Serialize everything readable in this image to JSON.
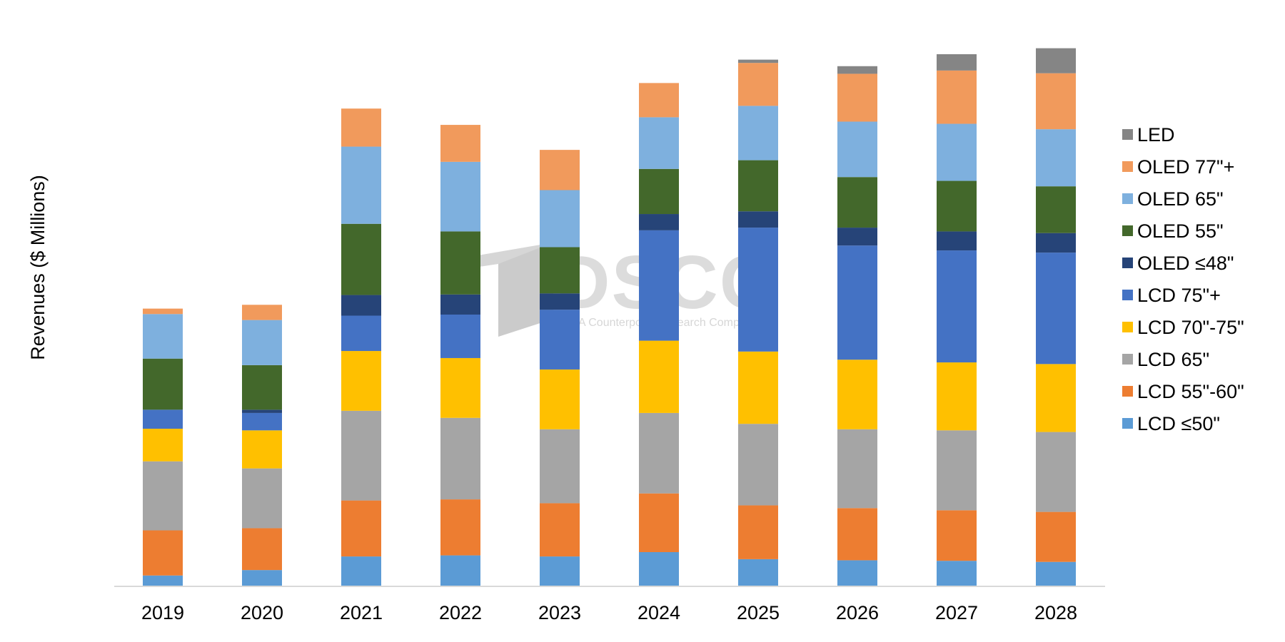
{
  "watermark": {
    "brand": "DSCC",
    "tagline": "A Counterpoint Research Company"
  },
  "chart_data": {
    "type": "bar",
    "stacked": true,
    "ylabel": "Revenues ($ Millions)",
    "xlabel": "",
    "title": "",
    "categories": [
      "2019",
      "2020",
      "2021",
      "2022",
      "2023",
      "2024",
      "2025",
      "2026",
      "2027",
      "2028"
    ],
    "ylim": [
      0,
      100
    ],
    "grid": false,
    "legend_position": "right",
    "series": [
      {
        "name": "LCD  ≤50\"",
        "color": "#5B9BD5",
        "values": [
          2,
          3,
          5.5,
          5.7,
          5.5,
          6.3,
          5,
          4.8,
          4.7,
          4.5
        ]
      },
      {
        "name": "LCD 55\"-60\"",
        "color": "#ED7D31",
        "values": [
          8.3,
          7.7,
          10.3,
          10.3,
          9.8,
          10.8,
          9.9,
          9.6,
          9.3,
          9.2
        ]
      },
      {
        "name": "LCD 65\"",
        "color": "#A5A5A5",
        "values": [
          12.7,
          11,
          16.5,
          15,
          13.6,
          14.8,
          15,
          14.5,
          14.7,
          14.7
        ]
      },
      {
        "name": "LCD 70\"-75\"",
        "color": "#FFC000",
        "values": [
          6,
          7,
          11,
          11,
          11,
          13.3,
          13.3,
          12.8,
          12.5,
          12.5
        ]
      },
      {
        "name": "LCD 75\"+",
        "color": "#4472C4",
        "values": [
          3.5,
          3.2,
          6.5,
          8,
          11,
          20.3,
          22.8,
          21,
          20.6,
          20.5
        ]
      },
      {
        "name": "OLED  ≤48\"",
        "color": "#264478",
        "values": [
          0,
          0.6,
          3.8,
          3.7,
          3,
          3,
          3,
          3.3,
          3.5,
          3.6
        ]
      },
      {
        "name": "OLED 55\"",
        "color": "#43682B",
        "values": [
          9.4,
          8.2,
          13.1,
          11.6,
          8.5,
          8.3,
          9.4,
          9.3,
          9.3,
          8.6
        ]
      },
      {
        "name": "OLED 65\"",
        "color": "#7EB0DE",
        "values": [
          8.2,
          8.3,
          14.2,
          12.8,
          10.5,
          9.5,
          10,
          10.2,
          10.5,
          10.5
        ]
      },
      {
        "name": "OLED 77\"+",
        "color": "#F19A5C",
        "values": [
          1,
          2.8,
          7,
          6.8,
          7.4,
          6.3,
          7.9,
          8.8,
          9.8,
          10.3
        ]
      },
      {
        "name": "LED",
        "color": "#858585",
        "values": [
          0,
          0,
          0,
          0,
          0,
          0,
          0.6,
          1.4,
          3,
          4.6
        ]
      }
    ]
  }
}
